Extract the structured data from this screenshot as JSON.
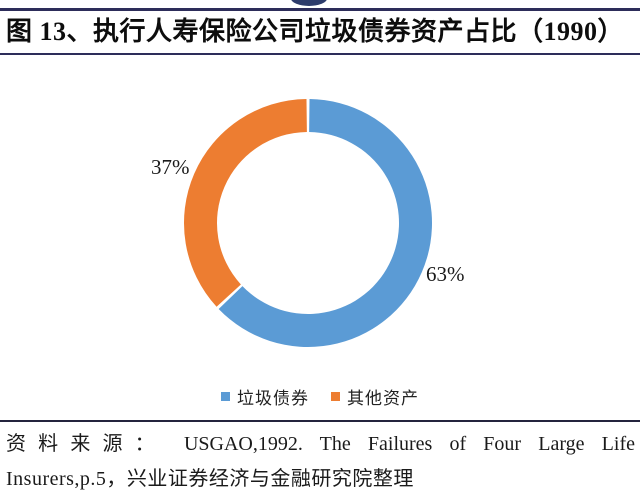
{
  "header": {
    "title": "图 13、执行人寿保险公司垃圾债券资产占比（1990）"
  },
  "chart_data": {
    "type": "pie",
    "subtype": "donut",
    "title": "执行人寿保险公司垃圾债券资产占比（1990）",
    "start_angle_deg": 0,
    "direction": "clockwise",
    "hole_ratio": 0.73,
    "legend_position": "bottom",
    "slices": [
      {
        "name": "垃圾债券",
        "value": 63,
        "label": "63%",
        "color": "#5B9BD5"
      },
      {
        "name": "其他资产",
        "value": 37,
        "label": "37%",
        "color": "#ED7D31"
      }
    ]
  },
  "source": {
    "line1": "资料来源： USGAO,1992. The Failures of Four Large Life",
    "line2": "Insurers,p.5，兴业证券经济与金融研究院整理"
  }
}
